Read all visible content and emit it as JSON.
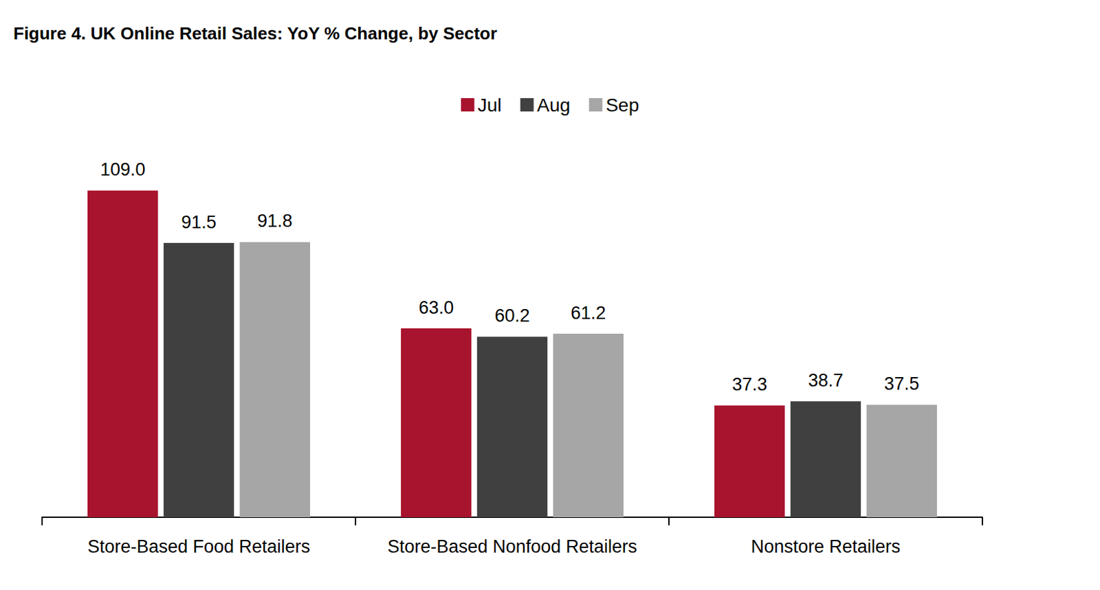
{
  "chart_data": {
    "type": "bar",
    "title": "Figure 4. UK Online Retail Sales: YoY % Change, by Sector",
    "categories": [
      "Store-Based Food Retailers",
      "Store-Based Nonfood Retailers",
      "Nonstore Retailers"
    ],
    "series": [
      {
        "name": "Jul",
        "color": "#a8132d",
        "values": [
          109.0,
          63.0,
          37.3
        ],
        "value_labels": [
          "109.0",
          "63.0",
          "37.3"
        ]
      },
      {
        "name": "Aug",
        "color": "#404040",
        "values": [
          91.5,
          60.2,
          38.7
        ],
        "value_labels": [
          "91.5",
          "60.2",
          "38.7"
        ]
      },
      {
        "name": "Sep",
        "color": "#a6a6a6",
        "values": [
          91.8,
          61.2,
          37.5
        ],
        "value_labels": [
          "91.8",
          "61.2",
          "37.5"
        ]
      }
    ],
    "ylim": [
      0,
      120
    ],
    "yticks": [
      0,
      20,
      40,
      60,
      80,
      100,
      120
    ],
    "grid": false,
    "legend": "top",
    "data_labels": true,
    "tick_labels": "x"
  }
}
